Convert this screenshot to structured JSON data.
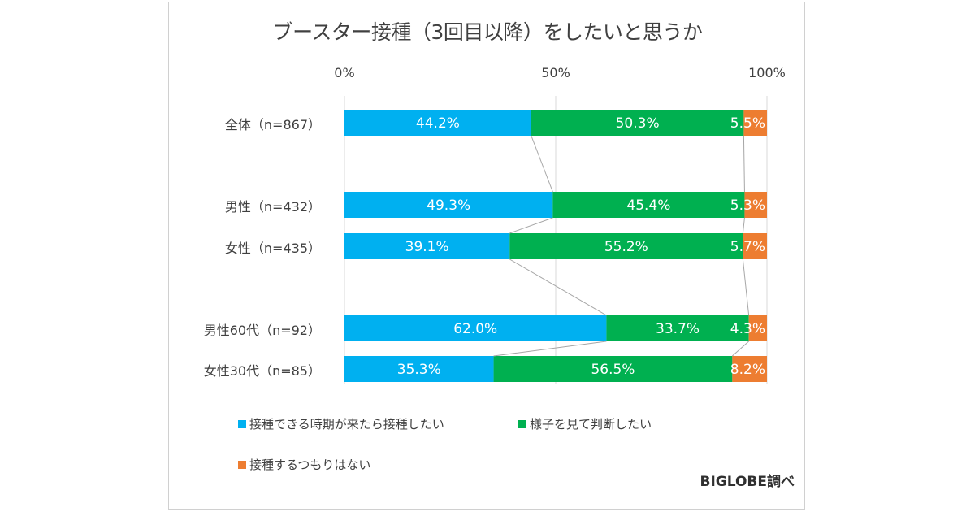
{
  "chart_data": {
    "type": "bar",
    "orientation": "horizontal",
    "stacked": true,
    "title": "ブースター接種（3回目以降）をしたいと思うか",
    "xlabel": "",
    "ylabel": "",
    "xlim": [
      0,
      100
    ],
    "x_ticks": [
      "0%",
      "50%",
      "100%"
    ],
    "x_tick_values": [
      0,
      50,
      100
    ],
    "gridlines": true,
    "categories": [
      "全体（n=867）",
      "男性（n=432）",
      "女性（n=435）",
      "男性60代（n=92）",
      "女性30代（n=85）"
    ],
    "series": [
      {
        "name": "接種できる時期が来たら接種したい",
        "color": "#00b0f0",
        "values": [
          44.2,
          49.3,
          39.1,
          62.0,
          35.3
        ],
        "labels": [
          "44.2%",
          "49.3%",
          "39.1%",
          "62.0%",
          "35.3%"
        ]
      },
      {
        "name": "様子を見て判断したい",
        "color": "#00b050",
        "values": [
          50.3,
          45.4,
          55.2,
          33.7,
          56.5
        ],
        "labels": [
          "50.3%",
          "45.4%",
          "55.2%",
          "33.7%",
          "56.5%"
        ]
      },
      {
        "name": "接種するつもりはない",
        "color": "#ed7d31",
        "values": [
          5.5,
          5.3,
          5.7,
          4.3,
          8.2
        ],
        "labels": [
          "5.5%",
          "5.3%",
          "5.7%",
          "4.3%",
          "8.2%"
        ]
      }
    ],
    "series_lines": true,
    "legend_position": "bottom"
  },
  "source": "BIGLOBE調べ"
}
